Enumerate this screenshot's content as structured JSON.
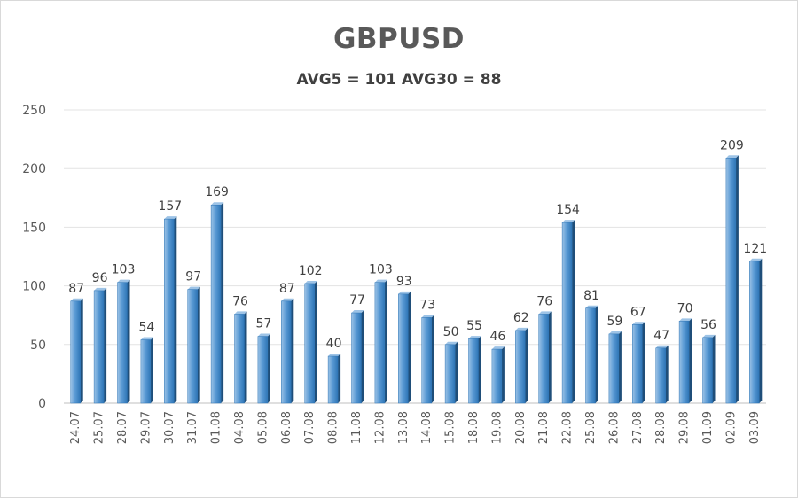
{
  "chart_data": {
    "type": "bar",
    "title": "GBPUSD",
    "subtitle": "AVG5 = 101 AVG30 = 88",
    "xlabel": "",
    "ylabel": "",
    "ylim": [
      0,
      250
    ],
    "yticks": [
      0,
      50,
      100,
      150,
      200,
      250
    ],
    "grid": true,
    "legend": "none",
    "bar_color": "#5b9bd5",
    "categories": [
      "24.07",
      "25.07",
      "28.07",
      "29.07",
      "30.07",
      "31.07",
      "01.08",
      "04.08",
      "05.08",
      "06.08",
      "07.08",
      "08.08",
      "11.08",
      "12.08",
      "13.08",
      "14.08",
      "15.08",
      "18.08",
      "19.08",
      "20.08",
      "21.08",
      "22.08",
      "25.08",
      "26.08",
      "27.08",
      "28.08",
      "29.08",
      "01.09",
      "02.09",
      "03.09"
    ],
    "values": [
      87,
      96,
      103,
      54,
      157,
      97,
      169,
      76,
      57,
      87,
      102,
      40,
      77,
      103,
      93,
      73,
      50,
      55,
      46,
      62,
      76,
      154,
      81,
      59,
      67,
      47,
      70,
      56,
      209,
      121
    ]
  }
}
